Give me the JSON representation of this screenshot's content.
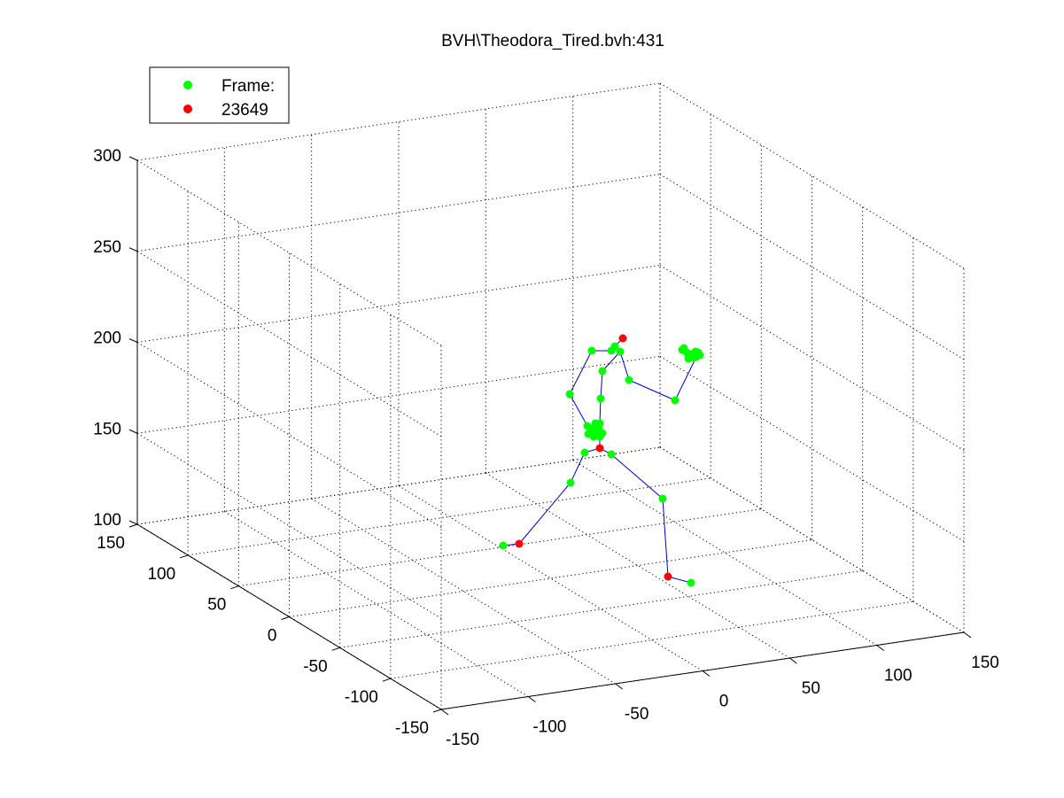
{
  "chart_data": {
    "type": "scatter",
    "title": "BVH\\Theodora_Tired.bvh:431",
    "xlabel": "",
    "ylabel": "",
    "zlabel": "",
    "x_ticks": [
      "-150",
      "-100",
      "-50",
      "0",
      "50",
      "100",
      "150"
    ],
    "y_ticks": [
      "-150",
      "-100",
      "-50",
      "0",
      "50",
      "100",
      "150"
    ],
    "z_ticks": [
      "100",
      "150",
      "200",
      "250",
      "300"
    ],
    "xlim": [
      -150,
      150
    ],
    "ylim": [
      -150,
      150
    ],
    "zlim": [
      100,
      300
    ],
    "grid": true,
    "legend": {
      "position": "top-left",
      "entries": [
        {
          "label": "Frame:",
          "color": "#00ff00"
        },
        {
          "label": "23649",
          "color": "#ff0000"
        }
      ]
    },
    "colors": {
      "joint": "#00ff00",
      "end_site": "#ff0000",
      "bone": "#0000cc"
    }
  }
}
